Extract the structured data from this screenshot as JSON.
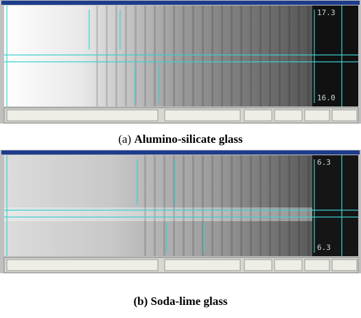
{
  "panels": [
    {
      "label": "(a)",
      "caption": "Alumino-silicate glass",
      "readouts": [
        "17.3",
        "16.0"
      ]
    },
    {
      "label": "(b)",
      "caption": "Soda-lime glass",
      "readouts": [
        "6.3",
        "6.3"
      ]
    }
  ]
}
